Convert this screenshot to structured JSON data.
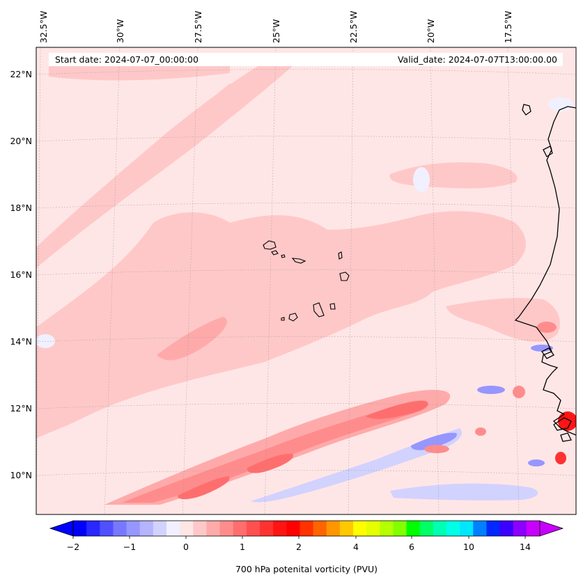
{
  "map": {
    "start_date_text": "Start date: 2024-07-07_00:00:00",
    "valid_date_text": "Valid_date: 2024-07-07T13:00:00.00",
    "lon_labels": [
      "32.5°W",
      "30°W",
      "27.5°W",
      "25°W",
      "22.5°W",
      "20°W",
      "17.5°W"
    ],
    "lat_labels": [
      "22°N",
      "20°N",
      "18°N",
      "16°N",
      "14°N",
      "12°N",
      "10°N"
    ],
    "extent": {
      "lon_min": -33.5,
      "lon_max": -14.5,
      "lat_min": 9.0,
      "lat_max": 22.8
    },
    "field": "700 hPa potential vorticity",
    "background_color": "#ffe6e6"
  },
  "colorbar": {
    "label": "700 hPa potenital vorticity (PVU)",
    "tick_labels": [
      "−2",
      "−1",
      "0",
      "1",
      "2",
      "4",
      "6",
      "8",
      "10",
      "14"
    ],
    "colors": [
      "#0000ff",
      "#2828ff",
      "#5050ff",
      "#7878ff",
      "#9696ff",
      "#b4b4ff",
      "#d2d2ff",
      "#f0f0ff",
      "#ffe6e6",
      "#ffc8c8",
      "#ffaaaa",
      "#ff8c8c",
      "#ff6e6e",
      "#ff5050",
      "#ff3232",
      "#ff1414",
      "#ff0000",
      "#ff3200",
      "#ff6400",
      "#ff9600",
      "#ffc800",
      "#ffff00",
      "#e6ff00",
      "#b4ff00",
      "#82ff00",
      "#00ff00",
      "#00ff64",
      "#00ffb4",
      "#00ffe6",
      "#00e6ff",
      "#0080ff",
      "#0028ff",
      "#3c00ff",
      "#8c00ff",
      "#c800ff"
    ],
    "under_color": "#0000ff",
    "over_color": "#c800ff"
  }
}
